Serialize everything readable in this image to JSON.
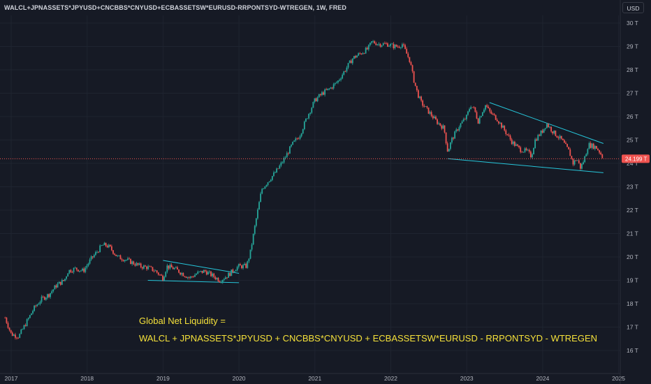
{
  "header": {
    "symbol": "WALCL+JPNASSETS*JPYUSD+CNCBBS*CNYUSD+ECBASSETSW*EURUSD-RRPONTSYD-WTREGEN, 1W, FRED",
    "currency_button": "USD"
  },
  "colors": {
    "background": "#161a25",
    "up": "#26a69a",
    "down": "#ef5350",
    "trendline": "#26c6da",
    "annotation": "#f5e13a",
    "price_line": "#ef5350",
    "grid": "#1f2430"
  },
  "annotations": {
    "line1": "Global Net Liquidity =",
    "line2": "WALCL + JPNASSETS*JPYUSD + CNCBBS*CNYUSD + ECBASSETSW*EURUSD - RRPONTSYD - WTREGEN"
  },
  "chart_data": {
    "type": "candlestick",
    "title": "WALCL+JPNASSETS*JPYUSD+CNCBBS*CNYUSD+ECBASSETSW*EURUSD-RRPONTSYD-WTREGEN, 1W, FRED",
    "y_unit": "T",
    "y_ticks": [
      "30 T",
      "29 T",
      "28 T",
      "27 T",
      "26 T",
      "25 T",
      "24 T",
      "23 T",
      "22 T",
      "21 T",
      "20 T",
      "19 T",
      "18 T",
      "17 T",
      "16 T"
    ],
    "y_tick_values": [
      30,
      29,
      28,
      27,
      26,
      25,
      24,
      23,
      22,
      21,
      20,
      19,
      18,
      17,
      16
    ],
    "x_ticks": [
      "2017",
      "2018",
      "2019",
      "2020",
      "2021",
      "2022",
      "2023",
      "2024",
      "2025"
    ],
    "x_tick_values": [
      2017,
      2018,
      2019,
      2020,
      2021,
      2022,
      2023,
      2024,
      2025
    ],
    "xlim": [
      2016.9,
      2025.1
    ],
    "ylim": [
      15.3,
      30.3
    ],
    "last_price": 24.199,
    "last_price_label": "24.199 T",
    "series": [
      {
        "values": [
          [
            2016.92,
            17.4
          ],
          [
            2017.0,
            16.7
          ],
          [
            2017.1,
            16.6
          ],
          [
            2017.2,
            17.2
          ],
          [
            2017.3,
            17.8
          ],
          [
            2017.4,
            18.2
          ],
          [
            2017.5,
            18.4
          ],
          [
            2017.6,
            18.8
          ],
          [
            2017.7,
            19.0
          ],
          [
            2017.75,
            19.4
          ],
          [
            2017.85,
            19.5
          ],
          [
            2017.95,
            19.4
          ],
          [
            2018.05,
            19.9
          ],
          [
            2018.15,
            20.3
          ],
          [
            2018.2,
            20.5
          ],
          [
            2018.25,
            20.5
          ],
          [
            2018.3,
            20.4
          ],
          [
            2018.4,
            20.0
          ],
          [
            2018.5,
            19.9
          ],
          [
            2018.6,
            19.75
          ],
          [
            2018.7,
            19.6
          ],
          [
            2018.8,
            19.55
          ],
          [
            2018.9,
            19.4
          ],
          [
            2019.0,
            19.1
          ],
          [
            2019.05,
            19.6
          ],
          [
            2019.15,
            19.5
          ],
          [
            2019.25,
            19.3
          ],
          [
            2019.35,
            19.1
          ],
          [
            2019.45,
            19.3
          ],
          [
            2019.55,
            19.4
          ],
          [
            2019.65,
            19.2
          ],
          [
            2019.75,
            19.0
          ],
          [
            2019.85,
            19.2
          ],
          [
            2019.95,
            19.5
          ],
          [
            2020.0,
            19.6
          ],
          [
            2020.1,
            19.6
          ],
          [
            2020.15,
            20.2
          ],
          [
            2020.22,
            21.5
          ],
          [
            2020.3,
            22.9
          ],
          [
            2020.4,
            23.3
          ],
          [
            2020.5,
            23.7
          ],
          [
            2020.6,
            24.2
          ],
          [
            2020.7,
            24.8
          ],
          [
            2020.8,
            25.2
          ],
          [
            2020.9,
            26.0
          ],
          [
            2021.0,
            26.7
          ],
          [
            2021.1,
            27.0
          ],
          [
            2021.2,
            27.2
          ],
          [
            2021.3,
            27.5
          ],
          [
            2021.4,
            28.0
          ],
          [
            2021.5,
            28.5
          ],
          [
            2021.6,
            28.7
          ],
          [
            2021.7,
            28.9
          ],
          [
            2021.75,
            29.2
          ],
          [
            2021.85,
            29.1
          ],
          [
            2021.95,
            29.1
          ],
          [
            2022.05,
            29.0
          ],
          [
            2022.1,
            29.0
          ],
          [
            2022.15,
            29.1
          ],
          [
            2022.25,
            28.4
          ],
          [
            2022.3,
            27.6
          ],
          [
            2022.35,
            27.0
          ],
          [
            2022.4,
            26.6
          ],
          [
            2022.5,
            26.2
          ],
          [
            2022.6,
            25.8
          ],
          [
            2022.7,
            25.5
          ],
          [
            2022.75,
            24.5
          ],
          [
            2022.8,
            25.0
          ],
          [
            2022.9,
            25.6
          ],
          [
            2023.0,
            26.0
          ],
          [
            2023.05,
            26.5
          ],
          [
            2023.1,
            26.3
          ],
          [
            2023.15,
            25.8
          ],
          [
            2023.2,
            26.2
          ],
          [
            2023.25,
            26.5
          ],
          [
            2023.3,
            26.2
          ],
          [
            2023.4,
            25.9
          ],
          [
            2023.5,
            25.4
          ],
          [
            2023.6,
            24.9
          ],
          [
            2023.7,
            24.6
          ],
          [
            2023.8,
            24.5
          ],
          [
            2023.85,
            24.3
          ],
          [
            2023.9,
            25.0
          ],
          [
            2024.0,
            25.4
          ],
          [
            2024.05,
            25.7
          ],
          [
            2024.15,
            25.3
          ],
          [
            2024.25,
            25.0
          ],
          [
            2024.35,
            24.5
          ],
          [
            2024.4,
            24.0
          ],
          [
            2024.45,
            24.2
          ],
          [
            2024.5,
            23.8
          ],
          [
            2024.55,
            24.2
          ],
          [
            2024.6,
            24.8
          ],
          [
            2024.7,
            24.7
          ],
          [
            2024.75,
            24.5
          ],
          [
            2024.8,
            24.2
          ]
        ]
      }
    ],
    "trendlines": [
      {
        "x1": 2019.0,
        "y1": 19.85,
        "x2": 2020.0,
        "y2": 19.3
      },
      {
        "x1": 2018.8,
        "y1": 19.0,
        "x2": 2020.0,
        "y2": 18.9
      },
      {
        "x1": 2023.3,
        "y1": 26.6,
        "x2": 2024.8,
        "y2": 24.85
      },
      {
        "x1": 2022.75,
        "y1": 24.2,
        "x2": 2024.8,
        "y2": 23.6
      }
    ]
  }
}
